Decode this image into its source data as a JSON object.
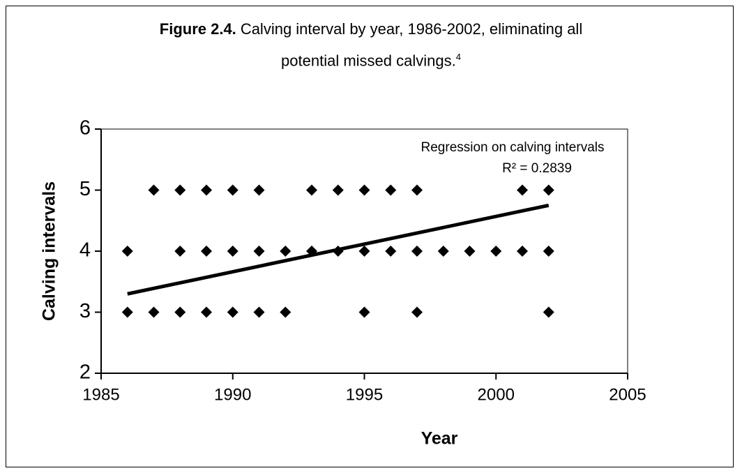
{
  "chart_data": {
    "type": "scatter",
    "title_label": "Figure 2.4.",
    "title": [
      "Calving interval by year, 1986-2002, eliminating all",
      "potential missed calvings."
    ],
    "title_note": "4",
    "x_label": "Year",
    "y_label": "Calving intervals",
    "annotations": [
      "Regression on calving intervals",
      "R² = 0.2839"
    ],
    "color": "#000000",
    "x": [
      1986,
      1986,
      1987,
      1987,
      1988,
      1988,
      1988,
      1989,
      1989,
      1989,
      1990,
      1990,
      1990,
      1991,
      1991,
      1991,
      1992,
      1992,
      1993,
      1993,
      1994,
      1994,
      1995,
      1995,
      1995,
      1996,
      1996,
      1997,
      1997,
      1997,
      1998,
      1999,
      2000,
      2001,
      2001,
      2002,
      2002,
      2002
    ],
    "values": [
      4,
      3,
      5,
      3,
      5,
      4,
      3,
      5,
      4,
      3,
      5,
      4,
      3,
      5,
      4,
      3,
      4,
      3,
      5,
      4,
      5,
      4,
      5,
      4,
      3,
      5,
      4,
      5,
      4,
      3,
      4,
      4,
      4,
      5,
      4,
      5,
      4,
      3
    ],
    "trendline": {
      "x": [
        1986,
        2002
      ],
      "values": [
        3.3,
        4.75
      ]
    },
    "xlim": [
      1985,
      2005
    ],
    "ylim": [
      2,
      6
    ],
    "xticks": [
      1985,
      1990,
      1995,
      2000,
      2005
    ],
    "yticks": [
      2,
      3,
      4,
      5,
      6
    ]
  }
}
